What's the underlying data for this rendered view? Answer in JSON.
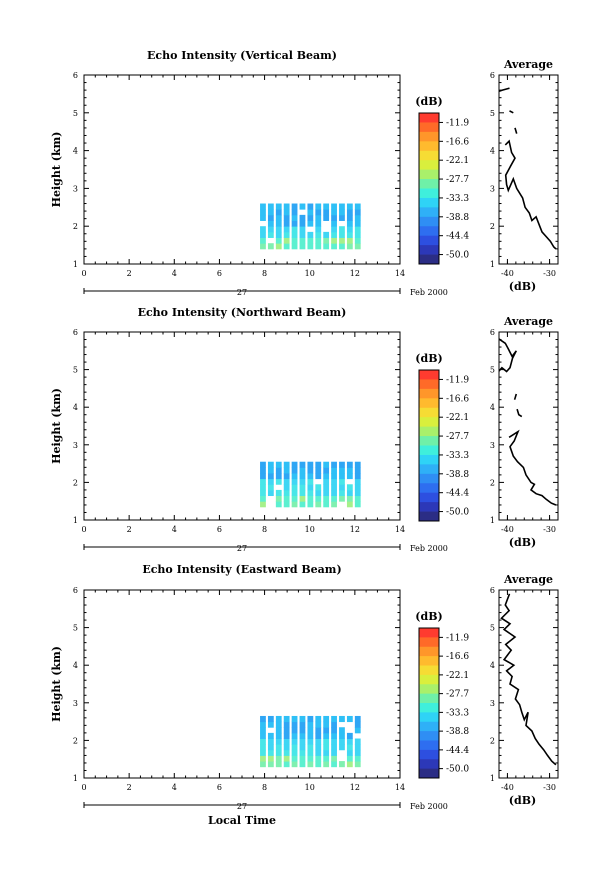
{
  "bottom_label": "Local Time",
  "chart_data": [
    {
      "type": "heatmap",
      "title": "Echo Intensity (Vertical Beam)",
      "ylabel": "Height (km)",
      "xlim": [
        0,
        14
      ],
      "ylim": [
        1,
        6
      ],
      "x_ticks": [
        "0",
        "2",
        "4",
        "6",
        "8",
        "10",
        "12",
        "14"
      ],
      "y_ticks": [
        "1",
        "2",
        "3",
        "4",
        "5",
        "6"
      ],
      "date_day": "27",
      "date_month": "Feb 2000",
      "colorbar_unit": "(dB)",
      "colorbar_ticks": [
        "-11.9",
        "-16.6",
        "-22.1",
        "-27.7",
        "-33.3",
        "-38.8",
        "-44.4",
        "-50.0"
      ],
      "echo_region": {
        "x": [
          7.8,
          12.1
        ],
        "y": [
          1.4,
          2.45
        ]
      },
      "profile": {
        "title": "Average",
        "xlabel": "(dB)",
        "xlim": [
          -42,
          -28
        ],
        "x_ticks": [
          "-40",
          "-30"
        ],
        "y_ticks": [
          "1",
          "2",
          "3",
          "4",
          "5",
          "6"
        ],
        "segments": [
          [
            [
              -42.5,
              5.55
            ],
            [
              -41.2,
              5.6
            ],
            [
              -39.5,
              5.65
            ]
          ],
          [
            [
              -39.5,
              5.05
            ],
            [
              -38.6,
              5.0
            ]
          ],
          [
            [
              -38.2,
              4.6
            ],
            [
              -37.8,
              4.45
            ]
          ],
          [
            [
              -40.5,
              4.15
            ],
            [
              -39.6,
              4.25
            ],
            [
              -39.0,
              3.95
            ],
            [
              -38.2,
              3.8
            ],
            [
              -39.2,
              3.6
            ],
            [
              -40.4,
              3.35
            ],
            [
              -40.2,
              3.1
            ],
            [
              -39.8,
              2.95
            ],
            [
              -38.6,
              3.25
            ],
            [
              -37.8,
              3.0
            ],
            [
              -36.4,
              2.75
            ],
            [
              -35.8,
              2.5
            ],
            [
              -34.8,
              2.35
            ],
            [
              -34.2,
              2.15
            ],
            [
              -33.2,
              2.25
            ],
            [
              -32.5,
              2.05
            ],
            [
              -31.8,
              1.85
            ],
            [
              -30.6,
              1.7
            ],
            [
              -29.8,
              1.6
            ],
            [
              -29.0,
              1.45
            ],
            [
              -28.5,
              1.4
            ]
          ]
        ]
      }
    },
    {
      "type": "heatmap",
      "title": "Echo Intensity (Northward Beam)",
      "ylabel": "Height (km)",
      "xlim": [
        0,
        14
      ],
      "ylim": [
        1,
        6
      ],
      "x_ticks": [
        "0",
        "2",
        "4",
        "6",
        "8",
        "10",
        "12",
        "14"
      ],
      "y_ticks": [
        "1",
        "2",
        "3",
        "4",
        "5",
        "6"
      ],
      "date_day": "27",
      "date_month": "Feb 2000",
      "colorbar_unit": "(dB)",
      "colorbar_ticks": [
        "-11.9",
        "-16.6",
        "-22.1",
        "-27.7",
        "-33.3",
        "-38.8",
        "-44.4",
        "-50.0"
      ],
      "echo_region": {
        "x": [
          7.8,
          12.1
        ],
        "y": [
          1.35,
          2.45
        ]
      },
      "profile": {
        "title": "Average",
        "xlabel": "(dB)",
        "xlim": [
          -42,
          -28
        ],
        "x_ticks": [
          "-40",
          "-30"
        ],
        "y_ticks": [
          "1",
          "2",
          "3",
          "4",
          "5",
          "6"
        ],
        "segments": [
          [
            [
              -42.5,
              5.85
            ],
            [
              -40.5,
              5.7
            ],
            [
              -39.8,
              5.55
            ],
            [
              -38.9,
              5.35
            ],
            [
              -37.9,
              5.5
            ],
            [
              -38.8,
              5.3
            ],
            [
              -39.4,
              5.05
            ],
            [
              -40.2,
              4.95
            ],
            [
              -41.3,
              5.05
            ],
            [
              -42.5,
              4.9
            ]
          ],
          [
            [
              -38.3,
              4.2
            ],
            [
              -37.9,
              4.35
            ]
          ],
          [
            [
              -37.7,
              3.95
            ],
            [
              -37.3,
              3.8
            ],
            [
              -36.6,
              3.75
            ]
          ],
          [
            [
              -39.6,
              3.2
            ],
            [
              -37.5,
              3.35
            ],
            [
              -38.4,
              3.1
            ],
            [
              -39.4,
              2.95
            ],
            [
              -38.6,
              2.7
            ],
            [
              -37.6,
              2.55
            ],
            [
              -36.2,
              2.4
            ],
            [
              -35.6,
              2.2
            ],
            [
              -34.4,
              2.0
            ],
            [
              -33.6,
              1.95
            ],
            [
              -34.4,
              1.8
            ],
            [
              -33.2,
              1.7
            ],
            [
              -31.8,
              1.65
            ],
            [
              -30.8,
              1.55
            ],
            [
              -29.6,
              1.45
            ],
            [
              -28.5,
              1.4
            ]
          ]
        ]
      }
    },
    {
      "type": "heatmap",
      "title": "Echo Intensity (Eastward Beam)",
      "ylabel": "Height (km)",
      "xlim": [
        0,
        14
      ],
      "ylim": [
        1,
        6
      ],
      "x_ticks": [
        "0",
        "2",
        "4",
        "6",
        "8",
        "10",
        "12",
        "14"
      ],
      "y_ticks": [
        "1",
        "2",
        "3",
        "4",
        "5",
        "6"
      ],
      "date_day": "27",
      "date_month": "Feb 2000",
      "colorbar_unit": "(dB)",
      "colorbar_ticks": [
        "-11.9",
        "-16.6",
        "-22.1",
        "-27.7",
        "-33.3",
        "-38.8",
        "-44.4",
        "-50.0"
      ],
      "echo_region": {
        "x": [
          7.8,
          12.1
        ],
        "y": [
          1.3,
          2.5
        ]
      },
      "profile": {
        "title": "Average",
        "xlabel": "(dB)",
        "xlim": [
          -42,
          -28
        ],
        "x_ticks": [
          "-40",
          "-30"
        ],
        "y_ticks": [
          "1",
          "2",
          "3",
          "4",
          "5",
          "6"
        ],
        "segments": [
          [
            [
              -39.5,
              5.9
            ],
            [
              -40.5,
              5.6
            ],
            [
              -39.6,
              5.45
            ],
            [
              -41.4,
              5.25
            ],
            [
              -39.4,
              5.1
            ],
            [
              -40.8,
              4.95
            ],
            [
              -38.2,
              4.75
            ],
            [
              -40.4,
              4.55
            ],
            [
              -39.1,
              4.4
            ],
            [
              -40.8,
              4.15
            ],
            [
              -38.5,
              4.0
            ],
            [
              -40.2,
              3.85
            ],
            [
              -38.9,
              3.7
            ],
            [
              -39.4,
              3.5
            ],
            [
              -37.4,
              3.35
            ],
            [
              -38.1,
              3.1
            ],
            [
              -37.1,
              2.95
            ],
            [
              -36.6,
              2.75
            ],
            [
              -36.0,
              2.55
            ],
            [
              -35.1,
              2.75
            ],
            [
              -35.6,
              2.4
            ],
            [
              -34.2,
              2.25
            ],
            [
              -33.4,
              2.05
            ],
            [
              -32.5,
              1.9
            ],
            [
              -31.4,
              1.75
            ],
            [
              -30.5,
              1.6
            ],
            [
              -29.5,
              1.45
            ],
            [
              -28.5,
              1.35
            ]
          ]
        ]
      }
    }
  ]
}
